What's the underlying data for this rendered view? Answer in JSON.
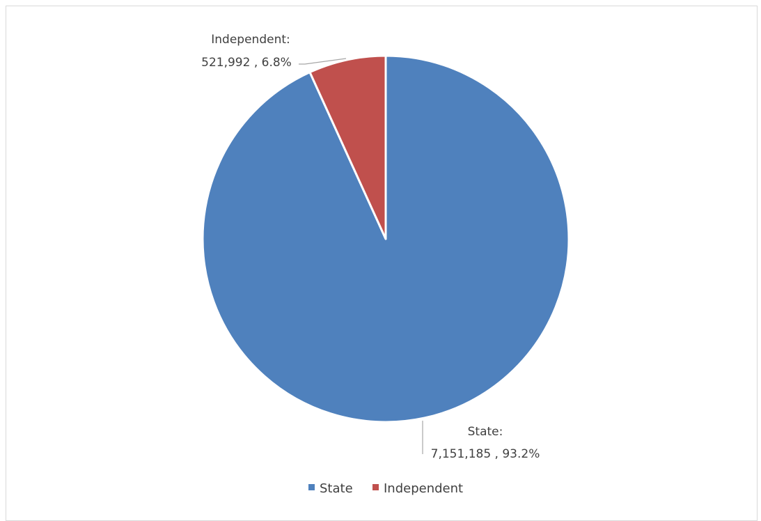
{
  "chart_data": {
    "type": "pie",
    "title": "",
    "series": [
      {
        "name": "",
        "categories": [
          "State",
          "Independent"
        ],
        "values": [
          7151185,
          521992
        ],
        "percent": [
          93.2,
          6.8
        ],
        "colors": [
          "#4F81BD",
          "#C0504D"
        ]
      }
    ],
    "data_labels": [
      {
        "category": "State",
        "line1": "State:",
        "line2": "7,151,185 , 93.2%"
      },
      {
        "category": "Independent",
        "line1": "Independent:",
        "line2": "521,992 , 6.8%"
      }
    ],
    "legend": {
      "position": "bottom",
      "entries": [
        "State",
        "Independent"
      ]
    }
  }
}
